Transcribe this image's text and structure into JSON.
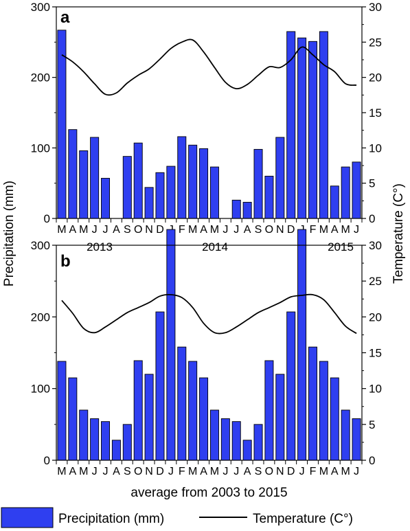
{
  "chart_data": [
    {
      "type": "bar",
      "panel_label": "a",
      "categories": [
        "M",
        "A",
        "M",
        "J",
        "J",
        "A",
        "S",
        "O",
        "N",
        "D",
        "J",
        "F",
        "M",
        "A",
        "M",
        "J",
        "J",
        "A",
        "S",
        "O",
        "N",
        "D",
        "J",
        "F",
        "M",
        "A",
        "M",
        "J"
      ],
      "year_labels": [
        "2013",
        "2014",
        "2015"
      ],
      "xlabel": "",
      "ylabel": "Precipitation (mm)",
      "y2label": "Temperature (C°)",
      "ylim": [
        0,
        300
      ],
      "y2lim": [
        0,
        30
      ],
      "yticks": [
        0,
        100,
        200,
        300
      ],
      "y2ticks": [
        0,
        5,
        10,
        15,
        20,
        25,
        30
      ],
      "grid": false,
      "series": [
        {
          "name": "Precipitation (mm)",
          "kind": "bar",
          "axis": "left",
          "color": "#2f3ff0",
          "values": [
            267,
            126,
            96,
            115,
            57,
            0,
            88,
            107,
            44,
            65,
            74,
            116,
            104,
            99,
            73,
            0,
            26,
            23,
            98,
            60,
            115,
            265,
            256,
            251,
            265,
            46,
            73,
            80
          ]
        },
        {
          "name": "Temperature (C°)",
          "kind": "line",
          "axis": "right",
          "color": "#000000",
          "values": [
            23.2,
            22.2,
            20.8,
            19.1,
            17.6,
            17.8,
            19.2,
            20.3,
            21.2,
            22.6,
            24.1,
            25.0,
            25.3,
            23.6,
            21.4,
            19.3,
            18.4,
            19.0,
            20.3,
            21.5,
            21.4,
            22.5,
            24.3,
            23.2,
            21.8,
            20.8,
            19.1,
            18.9
          ]
        }
      ]
    },
    {
      "type": "bar",
      "panel_label": "b",
      "categories": [
        "M",
        "A",
        "M",
        "J",
        "J",
        "A",
        "S",
        "O",
        "N",
        "D",
        "J",
        "F",
        "M",
        "A",
        "M",
        "J",
        "J",
        "A",
        "S",
        "O",
        "N",
        "D",
        "J",
        "F",
        "M",
        "A",
        "M",
        "J"
      ],
      "xlabel": "average from 2003 to 2015",
      "ylabel": "Precipitation (mm)",
      "y2label": "Temperature (C°)",
      "ylim": [
        0,
        300
      ],
      "y2lim": [
        0,
        30
      ],
      "yticks": [
        0,
        100,
        200,
        300
      ],
      "y2ticks": [
        0,
        5,
        10,
        15,
        20,
        25,
        30
      ],
      "grid": false,
      "series": [
        {
          "name": "Precipitation (mm)",
          "kind": "bar",
          "axis": "left",
          "color": "#2f3ff0",
          "values": [
            138,
            115,
            70,
            58,
            54,
            28,
            50,
            139,
            120,
            207,
            322,
            158,
            138,
            115,
            70,
            58,
            54,
            28,
            50,
            139,
            120,
            207,
            322,
            158,
            138,
            115,
            70,
            58
          ]
        },
        {
          "name": "Temperature (C°)",
          "kind": "line",
          "axis": "right",
          "color": "#000000",
          "values": [
            22.3,
            20.5,
            18.4,
            17.8,
            18.6,
            19.6,
            20.6,
            21.3,
            22.0,
            22.9,
            23.1,
            22.7,
            21.3,
            19.1,
            17.8,
            17.8,
            18.6,
            19.6,
            20.6,
            21.3,
            22.0,
            22.8,
            23.0,
            23.1,
            22.4,
            20.6,
            18.7,
            17.7
          ]
        }
      ]
    }
  ],
  "legend": {
    "position": "bottom",
    "items": [
      {
        "label": "Precipitation (mm)",
        "kind": "bar",
        "color": "#2f3ff0"
      },
      {
        "label": "Temperature (C°)",
        "kind": "line",
        "color": "#000000"
      }
    ]
  },
  "shared_axis_titles": {
    "left": "Precipitation (mm)",
    "right": "Temperature (C°)"
  }
}
